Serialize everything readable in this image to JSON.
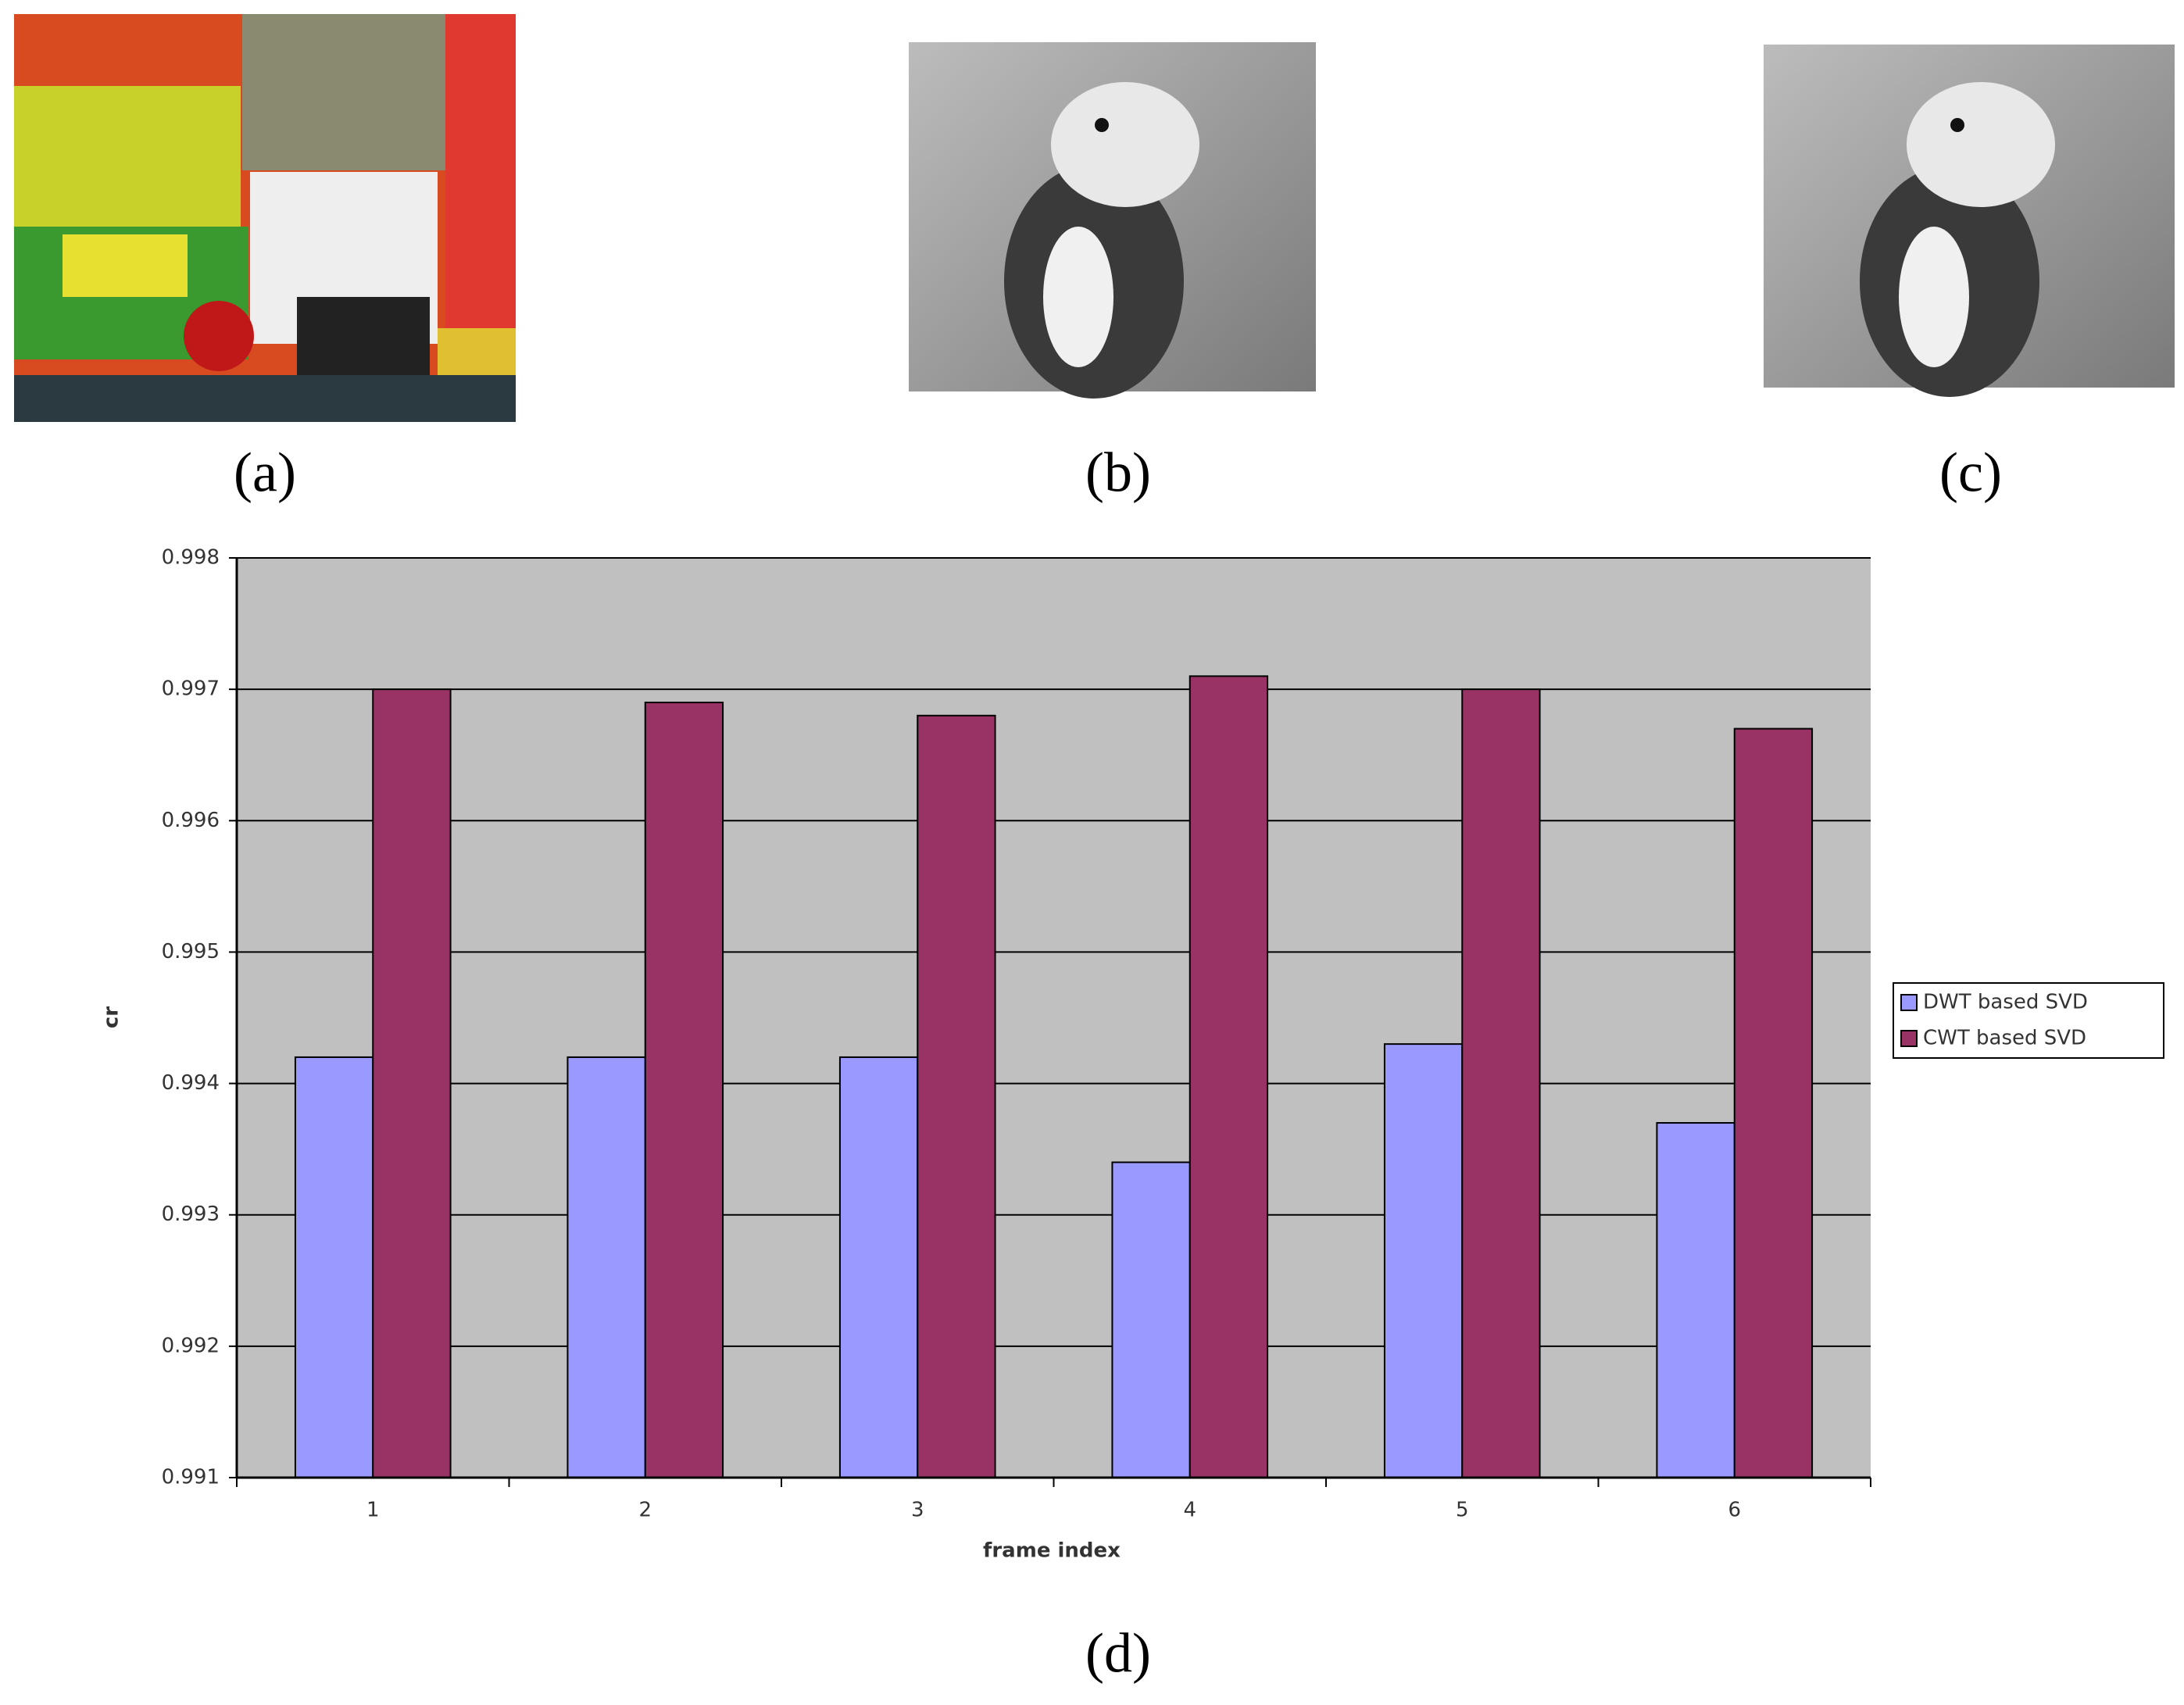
{
  "panel_labels": [
    "(a)",
    "(b)",
    "(c)",
    "(d)"
  ],
  "chart_data": {
    "type": "bar",
    "x_label": "frame index",
    "y_label": "cr",
    "categories": [
      "1",
      "2",
      "3",
      "4",
      "5",
      "6"
    ],
    "series": [
      {
        "name": "DWT based SVD",
        "color": "#9999ff",
        "values": [
          0.9942,
          0.9942,
          0.9942,
          0.9934,
          0.9943,
          0.9937
        ]
      },
      {
        "name": "CWT based SVD",
        "color": "#993366",
        "values": [
          0.997,
          0.9969,
          0.9968,
          0.9971,
          0.997,
          0.9967
        ]
      }
    ],
    "ylim": [
      0.991,
      0.998
    ],
    "yticks": [
      0.991,
      0.992,
      0.993,
      0.994,
      0.995,
      0.996,
      0.997,
      0.998
    ],
    "grid": true,
    "legend": "right",
    "plot_background": "#c0c0c0"
  }
}
